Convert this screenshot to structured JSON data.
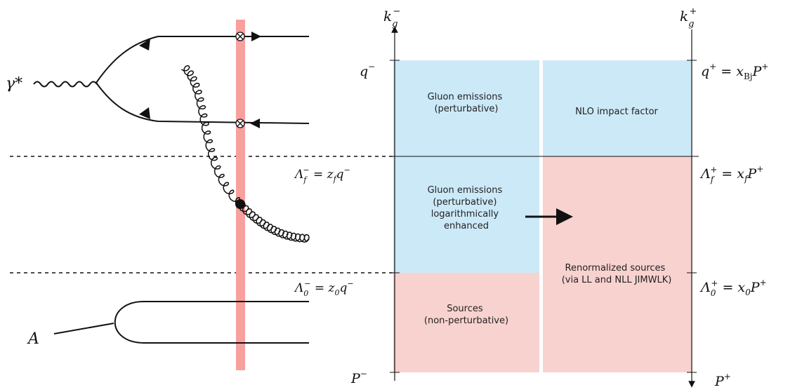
{
  "diagram": {
    "left": {
      "photon_label": "γ*",
      "nucleus_label": "A"
    },
    "right": {
      "axis_minus_label": "k_g^−",
      "axis_plus_label": "k_g^+",
      "left_ticks": {
        "top": "q^−",
        "lambda_f": "Λ_f^− = z_f q^−",
        "lambda_0": "Λ_0^− = z_0 q^−",
        "bottom": "P^−"
      },
      "right_ticks": {
        "top": "q^+ = x_Bj P^+",
        "lambda_f": "Λ_f^+ = x_f P^+",
        "lambda_0": "Λ_0^+ = x_0 P^+",
        "bottom": "P^+"
      },
      "regions": {
        "top_left": [
          "Gluon emissions",
          "(perturbative)"
        ],
        "top_right": [
          "NLO impact factor"
        ],
        "mid_left": [
          "Gluon emissions",
          "(perturbative)",
          "logarithmically",
          "enhanced"
        ],
        "right_large": [
          "Renormalized sources",
          "(via LL and NLL JIMWLK)"
        ],
        "bottom_left": [
          "Sources",
          "(non-perturbative)"
        ]
      },
      "colors": {
        "perturbative_blue": "#cce9f8",
        "sources_pink": "#f8d2cf",
        "shockwave_red": "#f7a09e"
      }
    }
  }
}
